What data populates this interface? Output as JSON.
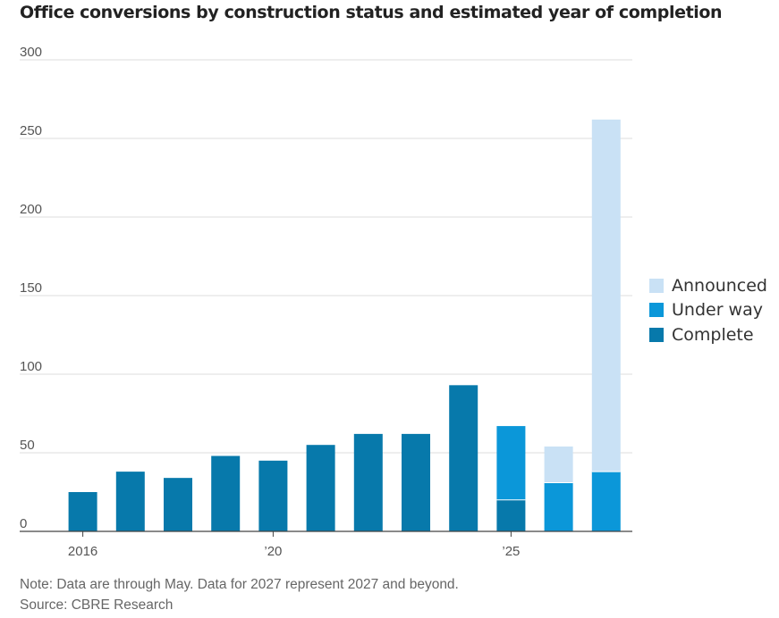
{
  "title": "Office conversions by construction status and estimated year of completion",
  "note": "Note: Data are through May. Data for 2027 represent 2027 and beyond.",
  "source": "Source: CBRE Research",
  "colors": {
    "announced": "#c9e1f5",
    "under_way": "#0b97d9",
    "complete": "#0779ab",
    "grid": "#dcdcdc",
    "axis": "#444444"
  },
  "legend": [
    {
      "label": "Announced",
      "color": "#c9e1f5"
    },
    {
      "label": "Under way",
      "color": "#0b97d9"
    },
    {
      "label": "Complete",
      "color": "#0779ab"
    }
  ],
  "chart_data": {
    "type": "bar",
    "stacked": true,
    "title": "Office conversions by construction status and estimated year of completion",
    "categories": [
      "2016",
      "2017",
      "2018",
      "2019",
      "2020",
      "2021",
      "2022",
      "2023",
      "2024",
      "2025",
      "2026",
      "2027"
    ],
    "x_tick_labels": [
      {
        "category": "2016",
        "label": "2016"
      },
      {
        "category": "2020",
        "label": "’20"
      },
      {
        "category": "2025",
        "label": "’25"
      }
    ],
    "series": [
      {
        "name": "Complete",
        "color": "#0779ab",
        "values": [
          25,
          38,
          34,
          48,
          45,
          55,
          62,
          62,
          93,
          20,
          0,
          0
        ]
      },
      {
        "name": "Under way",
        "color": "#0b97d9",
        "values": [
          0,
          0,
          0,
          0,
          0,
          0,
          0,
          0,
          0,
          47,
          31,
          38
        ]
      },
      {
        "name": "Announced",
        "color": "#c9e1f5",
        "values": [
          0,
          0,
          0,
          0,
          0,
          0,
          0,
          0,
          0,
          0,
          23,
          224
        ]
      }
    ],
    "ylim": [
      0,
      300
    ],
    "yticks": [
      0,
      50,
      100,
      150,
      200,
      250,
      300
    ],
    "grid": true,
    "legend_position": "right"
  }
}
